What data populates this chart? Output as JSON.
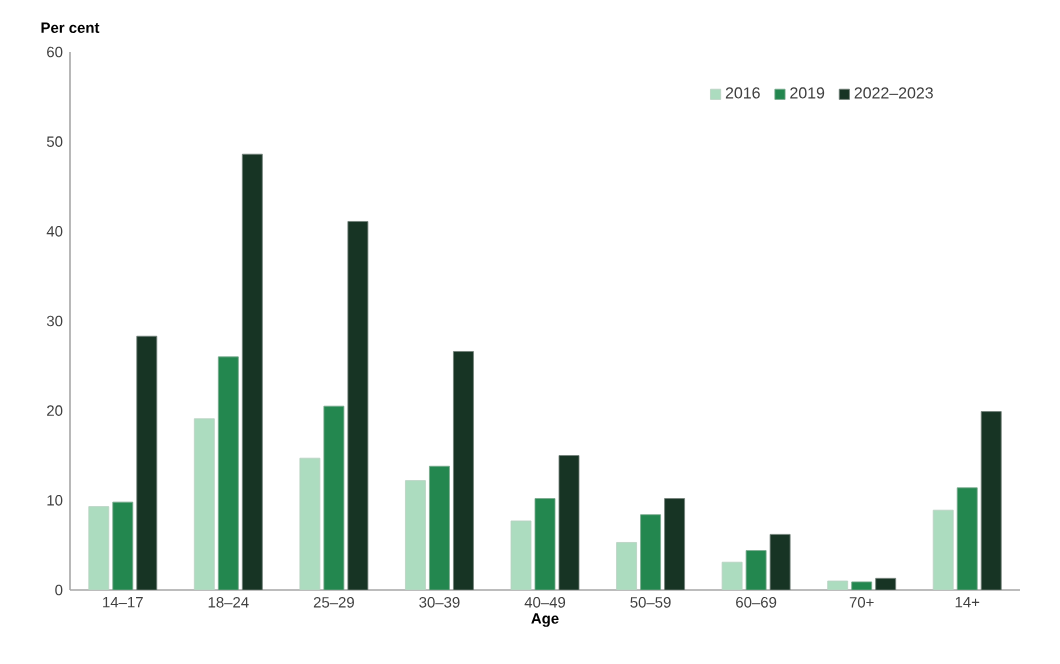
{
  "chart_data": {
    "type": "bar",
    "ylabel": "Per cent",
    "xlabel": "Age",
    "categories": [
      "14–17",
      "18–24",
      "25–29",
      "30–39",
      "40–49",
      "50–59",
      "60–69",
      "70+",
      "14+"
    ],
    "series": [
      {
        "name": "2016",
        "color": "#acdcbf",
        "values": [
          9.3,
          19.1,
          14.7,
          12.2,
          7.7,
          5.3,
          3.1,
          1.0,
          8.9
        ]
      },
      {
        "name": "2019",
        "color": "#23874f",
        "values": [
          9.8,
          26.0,
          20.5,
          13.8,
          10.2,
          8.4,
          4.4,
          0.9,
          11.4
        ]
      },
      {
        "name": "2022–2023",
        "color": "#173424",
        "values": [
          28.3,
          48.6,
          41.1,
          26.6,
          15.0,
          10.2,
          6.2,
          1.3,
          19.9
        ]
      }
    ],
    "ylim": [
      0,
      60
    ],
    "yticks": [
      0,
      10,
      20,
      30,
      40,
      50,
      60
    ],
    "grid": false,
    "legend": "top right"
  }
}
